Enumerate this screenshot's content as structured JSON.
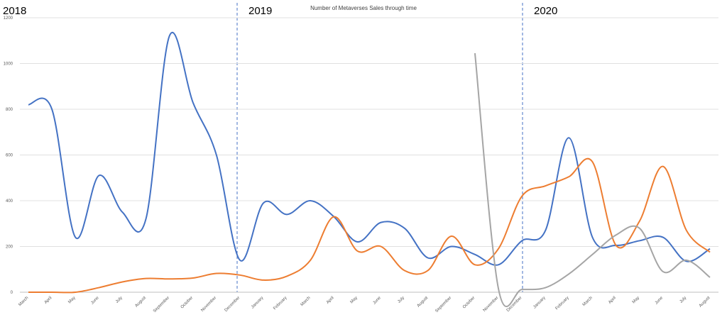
{
  "chart_data": {
    "type": "line",
    "title": "Number of Metaverses Sales through time",
    "annotations": [
      "2018",
      "2019",
      "2020"
    ],
    "categories": [
      "March",
      "April",
      "May",
      "June",
      "July",
      "August",
      "September",
      "October",
      "November",
      "December",
      "January",
      "February",
      "March",
      "April",
      "May",
      "June",
      "July",
      "August",
      "September",
      "October",
      "November",
      "December",
      "January",
      "February",
      "March",
      "April",
      "May",
      "June",
      "July",
      "August"
    ],
    "series": [
      {
        "color": "#4472c4",
        "values": [
          820,
          800,
          240,
          510,
          350,
          320,
          1120,
          830,
          600,
          140,
          390,
          340,
          400,
          330,
          220,
          305,
          280,
          150,
          200,
          165,
          120,
          225,
          270,
          675,
          240,
          205,
          225,
          240,
          135,
          190
        ]
      },
      {
        "color": "#ed7d31",
        "values": [
          0,
          0,
          0,
          20,
          45,
          60,
          58,
          62,
          82,
          75,
          53,
          70,
          140,
          330,
          180,
          200,
          95,
          95,
          245,
          120,
          190,
          420,
          465,
          505,
          570,
          205,
          310,
          550,
          270,
          175
        ]
      },
      {
        "color": "#a5a5a5",
        "values": [
          null,
          null,
          null,
          null,
          null,
          null,
          null,
          null,
          null,
          null,
          null,
          null,
          null,
          null,
          null,
          null,
          null,
          null,
          null,
          1045,
          15,
          12,
          20,
          80,
          165,
          250,
          280,
          90,
          140,
          65
        ]
      }
    ],
    "ylim": [
      0,
      1200
    ],
    "yticks": [
      0,
      200,
      400,
      600,
      800,
      1000,
      1200
    ],
    "grid": true,
    "smooth": true
  }
}
